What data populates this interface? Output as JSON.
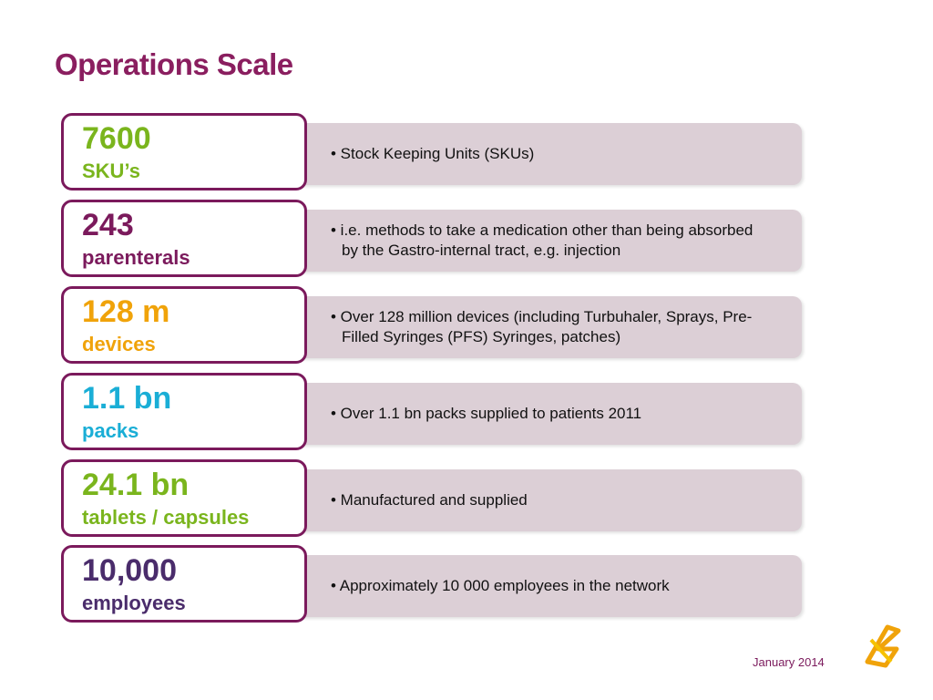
{
  "title": "Operations Scale",
  "items": [
    {
      "figure": "7600",
      "unit": "SKU’s",
      "color": "#7ab51d",
      "description": "• Stock Keeping Units (SKUs)"
    },
    {
      "figure": "243",
      "unit": "parenterals",
      "color": "#7b1a5c",
      "description": "• i.e. methods to take a medication other than being absorbed by the Gastro-internal tract, e.g. injection"
    },
    {
      "figure": "128 m",
      "unit": "devices",
      "color": "#f0a30a",
      "description": "• Over 128 million devices (including Turbuhaler, Sprays, Pre-Filled Syringes (PFS) Syringes, patches)"
    },
    {
      "figure": "1.1 bn",
      "unit": "packs",
      "color": "#1aaed6",
      "description": "• Over 1.1 bn packs supplied to patients 2011"
    },
    {
      "figure": "24.1 bn",
      "unit": "tablets / capsules",
      "color": "#7ab51d",
      "description": "• Manufactured and supplied"
    },
    {
      "figure": "10,000",
      "unit": "employees",
      "color": "#4a2c6b",
      "description": "• Approximately 10 000 employees in the network"
    }
  ],
  "footer": "January 2014"
}
